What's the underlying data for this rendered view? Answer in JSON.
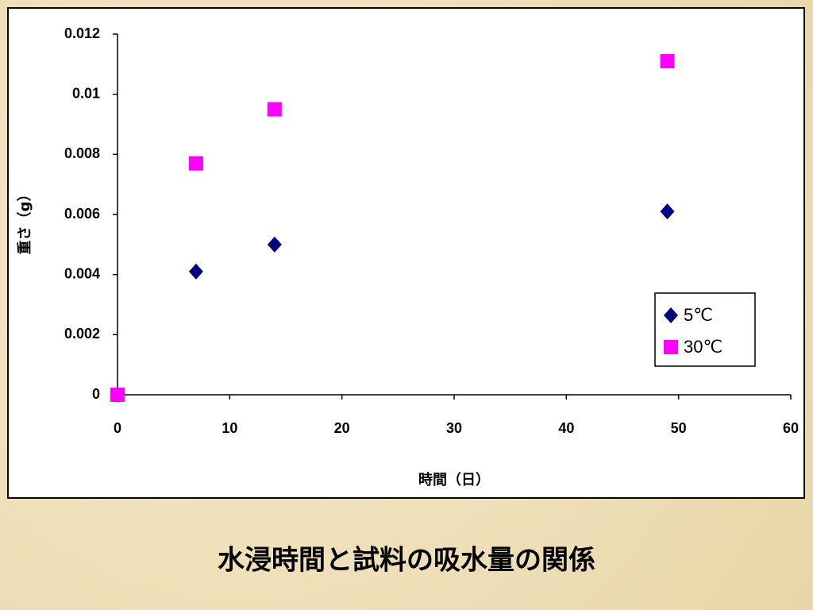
{
  "chart_data": {
    "type": "scatter",
    "title": "水浸時間と試料の吸水量の関係",
    "x_label": "時間（日）",
    "y_label": "重さ（g）",
    "xlim": [
      0,
      60
    ],
    "xticks": [
      0,
      10,
      20,
      30,
      40,
      50,
      60
    ],
    "ylim": [
      0,
      0.012
    ],
    "yticks": [
      0,
      0.002,
      0.004,
      0.006,
      0.008,
      0.01,
      0.012
    ],
    "legend_position": "lower right",
    "series": [
      {
        "name": "5℃",
        "color": "#000080",
        "marker": "diamond",
        "x": [
          0,
          7,
          14,
          49
        ],
        "values": [
          0,
          0.0041,
          0.005,
          0.0061
        ]
      },
      {
        "name": "30℃",
        "color": "#ff00ff",
        "marker": "square",
        "x": [
          0,
          7,
          14,
          49
        ],
        "values": [
          0,
          0.0077,
          0.0095,
          0.0111
        ]
      }
    ]
  }
}
